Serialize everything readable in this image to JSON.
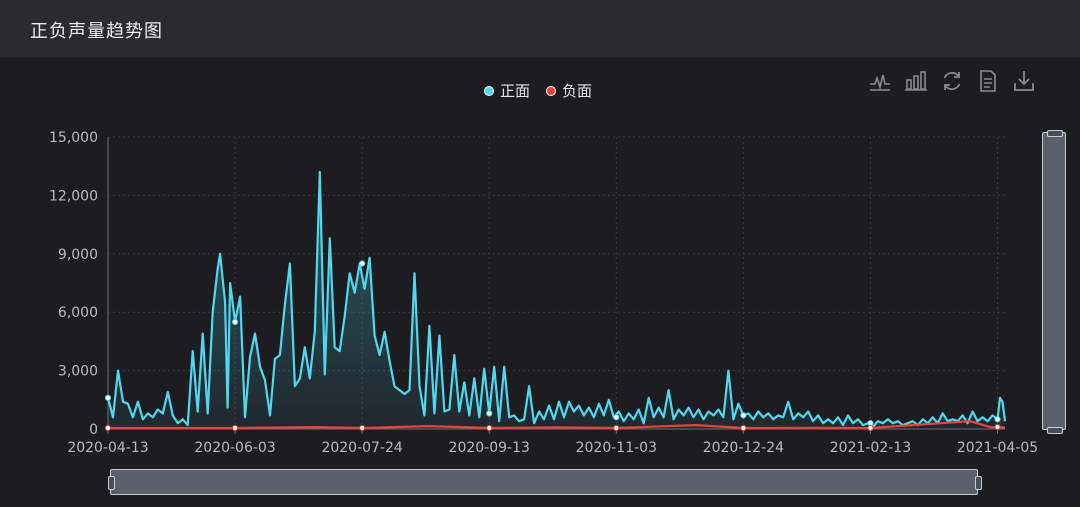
{
  "header": {
    "title": "正负声量趋势图"
  },
  "toolbox": {
    "items": [
      {
        "icon": "line-chart-icon"
      },
      {
        "icon": "bar-chart-icon"
      },
      {
        "icon": "refresh-icon"
      },
      {
        "icon": "data-view-icon"
      },
      {
        "icon": "download-icon"
      }
    ]
  },
  "legend": {
    "items": [
      {
        "label": "正面",
        "color": "#4fd8f0"
      },
      {
        "label": "负面",
        "color": "#e8413e"
      }
    ]
  },
  "chart_data": {
    "type": "line",
    "title": "",
    "xlabel": "",
    "ylabel": "",
    "ylim": [
      0,
      15000
    ],
    "y_ticks": [
      "0",
      "3,000",
      "6,000",
      "9,000",
      "12,000",
      "15,000"
    ],
    "x_tick_labels": [
      "2020-04-13",
      "2020-06-03",
      "2020-07-24",
      "2020-09-13",
      "2020-11-03",
      "2020-12-24",
      "2021-02-13",
      "2021-04-05"
    ],
    "x_start": "2020-04-13",
    "x_end": "2021-04-08",
    "grid": true,
    "legend_position": "top-center",
    "series": [
      {
        "name": "正面",
        "color": "#4fd8f0",
        "area": true,
        "points": [
          [
            "2020-04-13",
            1600
          ],
          [
            "2020-04-15",
            600
          ],
          [
            "2020-04-17",
            3000
          ],
          [
            "2020-04-19",
            1400
          ],
          [
            "2020-04-21",
            1300
          ],
          [
            "2020-04-23",
            600
          ],
          [
            "2020-04-25",
            1400
          ],
          [
            "2020-04-27",
            500
          ],
          [
            "2020-04-29",
            800
          ],
          [
            "2020-05-01",
            600
          ],
          [
            "2020-05-03",
            1000
          ],
          [
            "2020-05-05",
            800
          ],
          [
            "2020-05-07",
            1900
          ],
          [
            "2020-05-09",
            700
          ],
          [
            "2020-05-11",
            300
          ],
          [
            "2020-05-13",
            500
          ],
          [
            "2020-05-15",
            200
          ],
          [
            "2020-05-17",
            4000
          ],
          [
            "2020-05-19",
            900
          ],
          [
            "2020-05-21",
            4900
          ],
          [
            "2020-05-23",
            800
          ],
          [
            "2020-05-25",
            6000
          ],
          [
            "2020-05-27",
            8200
          ],
          [
            "2020-05-28",
            9000
          ],
          [
            "2020-05-30",
            6500
          ],
          [
            "2020-05-31",
            1100
          ],
          [
            "2020-06-01",
            7500
          ],
          [
            "2020-06-03",
            5500
          ],
          [
            "2020-06-05",
            6800
          ],
          [
            "2020-06-07",
            600
          ],
          [
            "2020-06-09",
            3700
          ],
          [
            "2020-06-11",
            4900
          ],
          [
            "2020-06-13",
            3200
          ],
          [
            "2020-06-15",
            2500
          ],
          [
            "2020-06-17",
            700
          ],
          [
            "2020-06-19",
            3600
          ],
          [
            "2020-06-21",
            3800
          ],
          [
            "2020-06-23",
            6400
          ],
          [
            "2020-06-25",
            8500
          ],
          [
            "2020-06-27",
            2200
          ],
          [
            "2020-06-29",
            2600
          ],
          [
            "2020-07-01",
            4200
          ],
          [
            "2020-07-03",
            2600
          ],
          [
            "2020-07-05",
            5000
          ],
          [
            "2020-07-07",
            13200
          ],
          [
            "2020-07-09",
            2800
          ],
          [
            "2020-07-11",
            9800
          ],
          [
            "2020-07-13",
            4200
          ],
          [
            "2020-07-15",
            4000
          ],
          [
            "2020-07-17",
            5800
          ],
          [
            "2020-07-19",
            8000
          ],
          [
            "2020-07-21",
            7000
          ],
          [
            "2020-07-23",
            8500
          ],
          [
            "2020-07-25",
            7200
          ],
          [
            "2020-07-27",
            8800
          ],
          [
            "2020-07-29",
            4800
          ],
          [
            "2020-07-31",
            3800
          ],
          [
            "2020-08-02",
            5000
          ],
          [
            "2020-08-04",
            3500
          ],
          [
            "2020-08-06",
            2200
          ],
          [
            "2020-08-08",
            2000
          ],
          [
            "2020-08-10",
            1800
          ],
          [
            "2020-08-12",
            2000
          ],
          [
            "2020-08-14",
            8000
          ],
          [
            "2020-08-16",
            2200
          ],
          [
            "2020-08-18",
            700
          ],
          [
            "2020-08-20",
            5300
          ],
          [
            "2020-08-22",
            800
          ],
          [
            "2020-08-24",
            4800
          ],
          [
            "2020-08-26",
            900
          ],
          [
            "2020-08-28",
            1000
          ],
          [
            "2020-08-30",
            3800
          ],
          [
            "2020-09-01",
            900
          ],
          [
            "2020-09-03",
            2400
          ],
          [
            "2020-09-05",
            700
          ],
          [
            "2020-09-07",
            2600
          ],
          [
            "2020-09-09",
            600
          ],
          [
            "2020-09-11",
            3100
          ],
          [
            "2020-09-13",
            800
          ],
          [
            "2020-09-15",
            3200
          ],
          [
            "2020-09-17",
            400
          ],
          [
            "2020-09-19",
            3200
          ],
          [
            "2020-09-21",
            600
          ],
          [
            "2020-09-23",
            700
          ],
          [
            "2020-09-25",
            400
          ],
          [
            "2020-09-27",
            500
          ],
          [
            "2020-09-29",
            2200
          ],
          [
            "2020-10-01",
            300
          ],
          [
            "2020-10-03",
            900
          ],
          [
            "2020-10-05",
            500
          ],
          [
            "2020-10-07",
            1200
          ],
          [
            "2020-10-09",
            500
          ],
          [
            "2020-10-11",
            1400
          ],
          [
            "2020-10-13",
            600
          ],
          [
            "2020-10-15",
            1400
          ],
          [
            "2020-10-17",
            900
          ],
          [
            "2020-10-19",
            1200
          ],
          [
            "2020-10-21",
            700
          ],
          [
            "2020-10-23",
            1100
          ],
          [
            "2020-10-25",
            600
          ],
          [
            "2020-10-27",
            1300
          ],
          [
            "2020-10-29",
            700
          ],
          [
            "2020-10-31",
            1500
          ],
          [
            "2020-11-02",
            600
          ],
          [
            "2020-11-04",
            900
          ],
          [
            "2020-11-06",
            400
          ],
          [
            "2020-11-08",
            800
          ],
          [
            "2020-11-10",
            500
          ],
          [
            "2020-11-12",
            1000
          ],
          [
            "2020-11-14",
            300
          ],
          [
            "2020-11-16",
            1600
          ],
          [
            "2020-11-18",
            600
          ],
          [
            "2020-11-20",
            1100
          ],
          [
            "2020-11-22",
            600
          ],
          [
            "2020-11-24",
            2000
          ],
          [
            "2020-11-26",
            500
          ],
          [
            "2020-11-28",
            1000
          ],
          [
            "2020-11-30",
            700
          ],
          [
            "2020-12-02",
            1100
          ],
          [
            "2020-12-04",
            600
          ],
          [
            "2020-12-06",
            1000
          ],
          [
            "2020-12-08",
            500
          ],
          [
            "2020-12-10",
            900
          ],
          [
            "2020-12-12",
            700
          ],
          [
            "2020-12-14",
            1000
          ],
          [
            "2020-12-16",
            600
          ],
          [
            "2020-12-18",
            3000
          ],
          [
            "2020-12-20",
            500
          ],
          [
            "2020-12-22",
            1300
          ],
          [
            "2020-12-24",
            700
          ],
          [
            "2020-12-26",
            800
          ],
          [
            "2020-12-28",
            500
          ],
          [
            "2020-12-30",
            900
          ],
          [
            "2021-01-01",
            600
          ],
          [
            "2021-01-03",
            800
          ],
          [
            "2021-01-05",
            500
          ],
          [
            "2021-01-07",
            700
          ],
          [
            "2021-01-09",
            600
          ],
          [
            "2021-01-11",
            1400
          ],
          [
            "2021-01-13",
            500
          ],
          [
            "2021-01-15",
            800
          ],
          [
            "2021-01-17",
            600
          ],
          [
            "2021-01-19",
            900
          ],
          [
            "2021-01-21",
            400
          ],
          [
            "2021-01-23",
            700
          ],
          [
            "2021-01-25",
            300
          ],
          [
            "2021-01-27",
            500
          ],
          [
            "2021-01-29",
            300
          ],
          [
            "2021-01-31",
            600
          ],
          [
            "2021-02-02",
            200
          ],
          [
            "2021-02-04",
            700
          ],
          [
            "2021-02-06",
            300
          ],
          [
            "2021-02-08",
            500
          ],
          [
            "2021-02-10",
            200
          ],
          [
            "2021-02-12",
            300
          ],
          [
            "2021-02-14",
            100
          ],
          [
            "2021-02-16",
            400
          ],
          [
            "2021-02-18",
            300
          ],
          [
            "2021-02-20",
            500
          ],
          [
            "2021-02-22",
            300
          ],
          [
            "2021-02-24",
            400
          ],
          [
            "2021-02-26",
            200
          ],
          [
            "2021-02-28",
            300
          ],
          [
            "2021-03-02",
            400
          ],
          [
            "2021-03-04",
            200
          ],
          [
            "2021-03-06",
            500
          ],
          [
            "2021-03-08",
            300
          ],
          [
            "2021-03-10",
            600
          ],
          [
            "2021-03-12",
            300
          ],
          [
            "2021-03-14",
            800
          ],
          [
            "2021-03-16",
            400
          ],
          [
            "2021-03-18",
            500
          ],
          [
            "2021-03-20",
            400
          ],
          [
            "2021-03-22",
            700
          ],
          [
            "2021-03-24",
            300
          ],
          [
            "2021-03-26",
            900
          ],
          [
            "2021-03-28",
            400
          ],
          [
            "2021-03-30",
            600
          ],
          [
            "2021-04-01",
            400
          ],
          [
            "2021-04-03",
            700
          ],
          [
            "2021-04-05",
            500
          ],
          [
            "2021-04-06",
            1600
          ],
          [
            "2021-04-07",
            1400
          ],
          [
            "2021-04-08",
            400
          ]
        ]
      },
      {
        "name": "负面",
        "color": "#e8413e",
        "area": false,
        "points": [
          [
            "2020-04-13",
            50
          ],
          [
            "2020-05-13",
            50
          ],
          [
            "2020-06-03",
            50
          ],
          [
            "2020-07-05",
            100
          ],
          [
            "2020-07-24",
            50
          ],
          [
            "2020-08-20",
            150
          ],
          [
            "2020-09-13",
            50
          ],
          [
            "2020-10-10",
            80
          ],
          [
            "2020-11-03",
            50
          ],
          [
            "2020-12-05",
            200
          ],
          [
            "2020-12-24",
            50
          ],
          [
            "2021-01-20",
            60
          ],
          [
            "2021-02-13",
            50
          ],
          [
            "2021-03-25",
            400
          ],
          [
            "2021-04-02",
            100
          ],
          [
            "2021-04-08",
            80
          ]
        ]
      }
    ]
  }
}
